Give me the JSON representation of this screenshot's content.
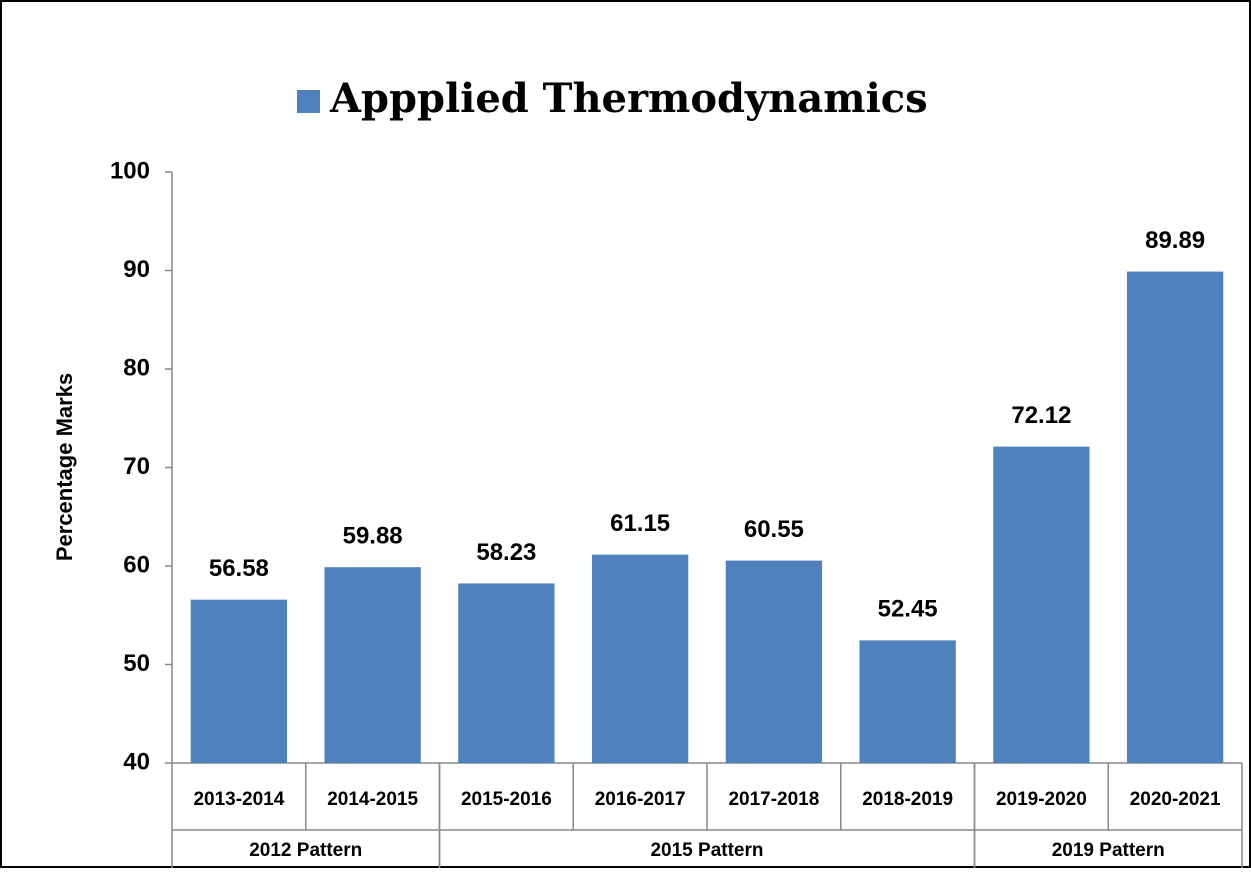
{
  "chart_data": {
    "type": "bar",
    "legend": "Appplied Thermodynamics",
    "color": "#4f81bd",
    "y_label": "Percentage Marks",
    "groups": [
      {
        "name": "2012 Pattern",
        "categories": [
          "2013-2014",
          "2014-2015"
        ]
      },
      {
        "name": "2015 Pattern",
        "categories": [
          "2015-2016",
          "2016-2017",
          "2017-2018",
          "2018-2019"
        ]
      },
      {
        "name": "2019 Pattern",
        "categories": [
          "2019-2020",
          "2020-2021"
        ]
      }
    ],
    "values": [
      56.58,
      59.88,
      58.23,
      61.15,
      60.55,
      52.45,
      72.12,
      89.89
    ],
    "ylim": [
      40,
      100
    ],
    "yticks": [
      40,
      50,
      60,
      70,
      80,
      90,
      100
    ],
    "grid": false
  }
}
